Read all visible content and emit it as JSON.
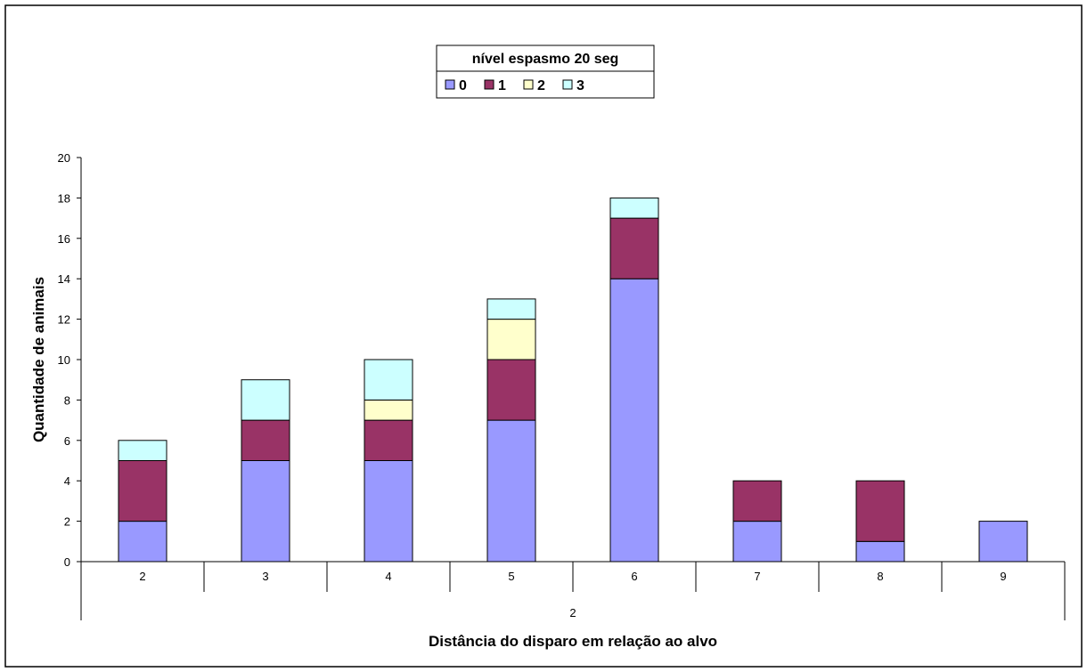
{
  "chart_data": {
    "type": "bar",
    "stacked": true,
    "categories": [
      "2",
      "3",
      "4",
      "5",
      "6",
      "7",
      "8",
      "9"
    ],
    "group_label": "2",
    "legend_title": "nível espasmo 20 seg",
    "legend_position": "top-center",
    "series": [
      {
        "name": "0",
        "color": "#9999FF",
        "values": [
          2,
          5,
          5,
          7,
          14,
          2,
          1,
          2
        ]
      },
      {
        "name": "1",
        "color": "#993366",
        "values": [
          3,
          2,
          2,
          3,
          3,
          2,
          3,
          0
        ]
      },
      {
        "name": "2",
        "color": "#FFFFCC",
        "values": [
          0,
          0,
          1,
          2,
          0,
          0,
          0,
          0
        ]
      },
      {
        "name": "3",
        "color": "#CCFFFF",
        "values": [
          1,
          2,
          2,
          1,
          1,
          0,
          0,
          0
        ]
      }
    ],
    "xlabel": "Distância do disparo em relação ao alvo",
    "ylabel": "Quantidade de animais",
    "ylim": [
      0,
      20
    ],
    "yticks": [
      "0",
      "2",
      "4",
      "6",
      "8",
      "10",
      "12",
      "14",
      "16",
      "18",
      "20"
    ],
    "grid": false
  }
}
